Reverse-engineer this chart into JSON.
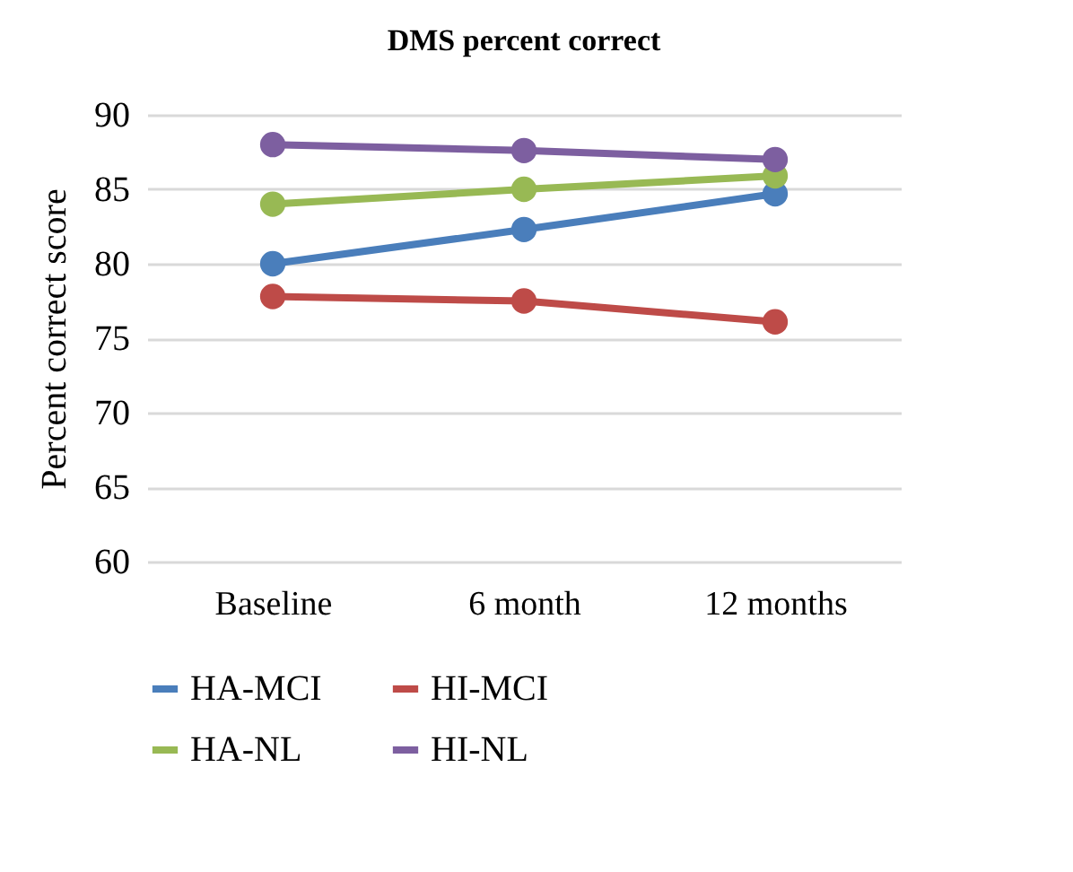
{
  "chart_data": {
    "type": "line",
    "title": "DMS percent correct",
    "ylabel": "Percent correct score",
    "categories": [
      "Baseline",
      "6 month",
      "12 months"
    ],
    "series": [
      {
        "name": "HA-MCI",
        "color": "#4a7ebb",
        "values": [
          80.0,
          82.3,
          84.7
        ]
      },
      {
        "name": "HI-MCI",
        "color": "#be4b48",
        "values": [
          77.8,
          77.5,
          76.1
        ]
      },
      {
        "name": "HA-NL",
        "color": "#98b954",
        "values": [
          84.0,
          85.0,
          85.9
        ]
      },
      {
        "name": "HI-NL",
        "color": "#7d5fa0",
        "values": [
          88.0,
          87.6,
          87.0
        ]
      }
    ],
    "ylim": [
      60,
      90
    ],
    "yticks": [
      60,
      65,
      70,
      75,
      80,
      85,
      90
    ],
    "grid": "y",
    "legend": "bottom",
    "marker": "circle",
    "line_style": "solid"
  }
}
